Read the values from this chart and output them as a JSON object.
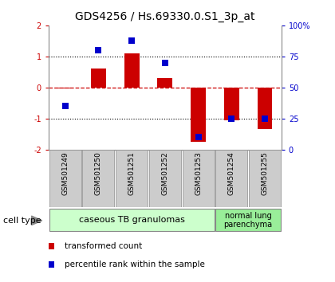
{
  "title": "GDS4256 / Hs.69330.0.S1_3p_at",
  "samples": [
    "GSM501249",
    "GSM501250",
    "GSM501251",
    "GSM501252",
    "GSM501253",
    "GSM501254",
    "GSM501255"
  ],
  "transformed_count": [
    -0.04,
    0.6,
    1.1,
    0.3,
    -1.75,
    -1.05,
    -1.35
  ],
  "percentile_rank": [
    35,
    80,
    88,
    70,
    10,
    25,
    25
  ],
  "ylim_left": [
    -2,
    2
  ],
  "ylim_right": [
    0,
    100
  ],
  "yticks_left": [
    -2,
    -1,
    0,
    1,
    2
  ],
  "yticks_right": [
    0,
    25,
    50,
    75,
    100
  ],
  "yticklabels_right": [
    "0",
    "25",
    "50",
    "75",
    "100%"
  ],
  "red_color": "#cc0000",
  "blue_color": "#0000cc",
  "bar_width": 0.45,
  "marker_size": 6,
  "group1_label": "caseous TB granulomas",
  "group2_label": "normal lung\nparenchyma",
  "group1_color": "#ccffcc",
  "group2_color": "#99ee99",
  "cell_type_label": "cell type",
  "legend_red": "transformed count",
  "legend_blue": "percentile rank within the sample",
  "bg_color": "#ffffff",
  "sample_box_color": "#cccccc",
  "n_group1": 5,
  "n_group2": 2
}
